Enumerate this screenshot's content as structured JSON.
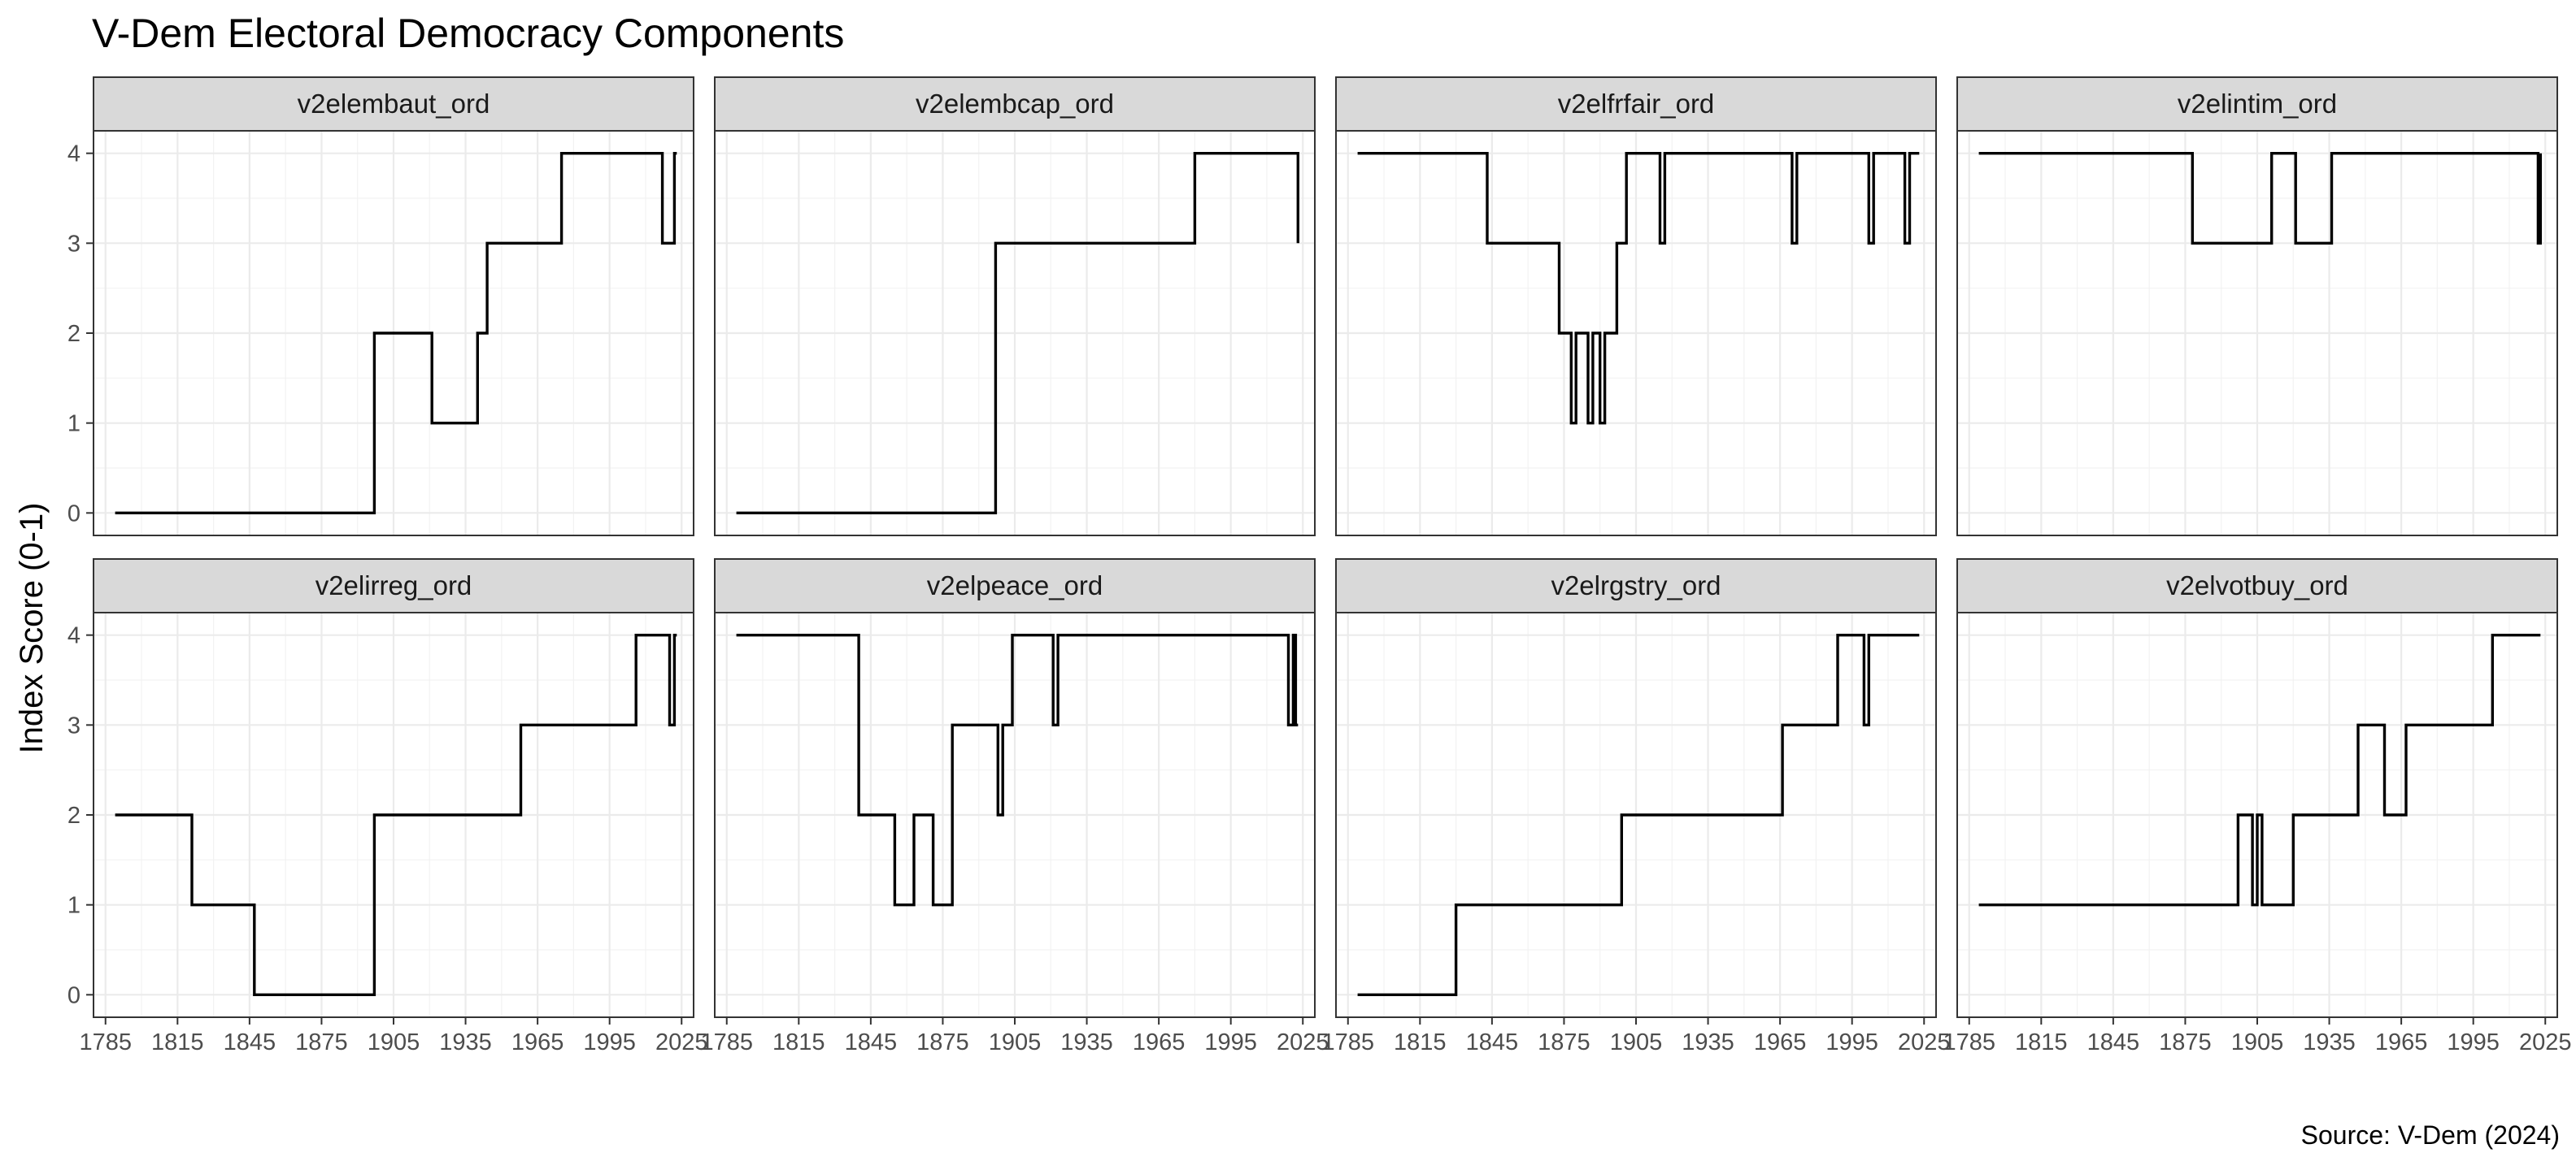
{
  "chart_data": {
    "type": "line",
    "title": "V-Dem Electoral Democracy Components",
    "ylabel": "Index Score (0-1)",
    "xlabel": "",
    "caption": "Source: V-Dem (2024)",
    "xlim": [
      1780,
      2030
    ],
    "ylim": [
      -0.25,
      4.25
    ],
    "x_ticks": [
      1785,
      1815,
      1845,
      1875,
      1905,
      1935,
      1965,
      1995,
      2025
    ],
    "y_ticks": [
      0,
      1,
      2,
      3,
      4
    ],
    "grid": true,
    "facets": [
      {
        "name": "v2elembaut_ord",
        "steps": [
          [
            1789,
            0
          ],
          [
            1897,
            2
          ],
          [
            1921,
            1
          ],
          [
            1940,
            2
          ],
          [
            1944,
            3
          ],
          [
            1975,
            4
          ],
          [
            2017,
            3
          ],
          [
            2022,
            4
          ],
          [
            2023,
            4
          ]
        ]
      },
      {
        "name": "v2elembcap_ord",
        "steps": [
          [
            1789,
            0
          ],
          [
            1897,
            3
          ],
          [
            1980,
            4
          ],
          [
            2023,
            3
          ]
        ]
      },
      {
        "name": "v2elfrfair_ord",
        "steps": [
          [
            1789,
            4
          ],
          [
            1843,
            3
          ],
          [
            1873,
            2
          ],
          [
            1878,
            1
          ],
          [
            1880,
            2
          ],
          [
            1885,
            1
          ],
          [
            1887,
            2
          ],
          [
            1890,
            1
          ],
          [
            1892,
            2
          ],
          [
            1897,
            3
          ],
          [
            1901,
            4
          ],
          [
            1915,
            3
          ],
          [
            1917,
            4
          ],
          [
            1970,
            3
          ],
          [
            1972,
            4
          ],
          [
            2002,
            3
          ],
          [
            2004,
            4
          ],
          [
            2017,
            3
          ],
          [
            2019,
            4
          ],
          [
            2023,
            4
          ]
        ]
      },
      {
        "name": "v2elintim_ord",
        "steps": [
          [
            1789,
            4
          ],
          [
            1878,
            3
          ],
          [
            1911,
            4
          ],
          [
            1921,
            3
          ],
          [
            1936,
            4
          ],
          [
            2022,
            3
          ],
          [
            2023,
            4
          ]
        ]
      },
      {
        "name": "v2elirreg_ord",
        "steps": [
          [
            1789,
            2
          ],
          [
            1821,
            1
          ],
          [
            1847,
            0
          ],
          [
            1897,
            2
          ],
          [
            1958,
            3
          ],
          [
            2006,
            4
          ],
          [
            2020,
            3
          ],
          [
            2022,
            4
          ],
          [
            2023,
            4
          ]
        ]
      },
      {
        "name": "v2elpeace_ord",
        "steps": [
          [
            1789,
            4
          ],
          [
            1840,
            2
          ],
          [
            1855,
            1
          ],
          [
            1863,
            2
          ],
          [
            1871,
            1
          ],
          [
            1879,
            3
          ],
          [
            1898,
            2
          ],
          [
            1900,
            3
          ],
          [
            1904,
            4
          ],
          [
            1921,
            3
          ],
          [
            1923,
            4
          ],
          [
            2019,
            3
          ],
          [
            2021,
            4
          ],
          [
            2022,
            3
          ],
          [
            2023,
            3
          ]
        ]
      },
      {
        "name": "v2elrgstry_ord",
        "steps": [
          [
            1789,
            0
          ],
          [
            1830,
            1
          ],
          [
            1899,
            2
          ],
          [
            1966,
            3
          ],
          [
            1989,
            4
          ],
          [
            2000,
            3
          ],
          [
            2002,
            4
          ],
          [
            2023,
            4
          ]
        ]
      },
      {
        "name": "v2elvotbuy_ord",
        "steps": [
          [
            1789,
            1
          ],
          [
            1897,
            2
          ],
          [
            1903,
            1
          ],
          [
            1905,
            2
          ],
          [
            1907,
            1
          ],
          [
            1920,
            2
          ],
          [
            1947,
            3
          ],
          [
            1958,
            2
          ],
          [
            1967,
            3
          ],
          [
            2003,
            4
          ],
          [
            2023,
            4
          ]
        ]
      }
    ]
  }
}
